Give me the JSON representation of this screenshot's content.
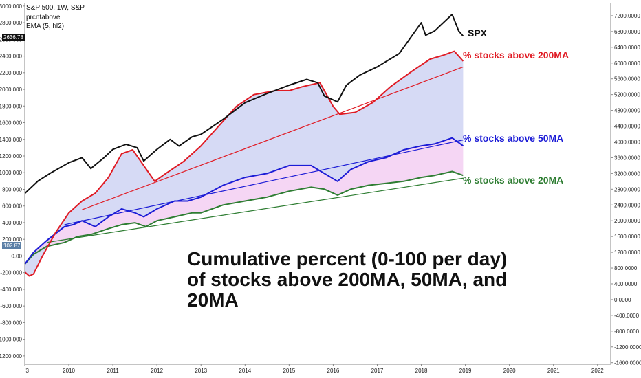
{
  "header": {
    "symbol": "S&P 500, 1W, S&P",
    "indicator": "prcntabove",
    "ema": "EMA (5, hl2)"
  },
  "price_tags": {
    "spx": {
      "text": "2636.78",
      "color": "#111111"
    },
    "indicator": {
      "text": "102.87",
      "color": "#5b7fa6"
    }
  },
  "annotations": {
    "spx": {
      "text": "SPX",
      "color": "#111111"
    },
    "ma200": {
      "text": "% stocks above 200MA",
      "color": "#e01b24"
    },
    "ma50": {
      "text": "% stocks above 50MA",
      "color": "#1c1cd6"
    },
    "ma20": {
      "text": "% stocks above 20MA",
      "color": "#2e7d32"
    }
  },
  "note": {
    "line1": "Cumulative percent (0-100 per day)",
    "line2": "of stocks above 200MA, 50MA, and",
    "line3": "20MA"
  },
  "chart_data": {
    "type": "line",
    "x_labels": [
      "'3",
      "2010",
      "2011",
      "2012",
      "2013",
      "2014",
      "2015",
      "2016",
      "2017",
      "2018",
      "2019",
      "2020",
      "2021",
      "2022"
    ],
    "x_ticks": [
      2009,
      2010,
      2011,
      2012,
      2013,
      2014,
      2015,
      2016,
      2017,
      2018,
      2019,
      2020,
      2021,
      2022
    ],
    "xlim": [
      2009.0,
      2022.3
    ],
    "left_axis": {
      "ticks": [
        3000,
        2800,
        2600,
        2400,
        2200,
        2000,
        1800,
        1600,
        1400,
        1200,
        1000,
        800,
        600,
        400,
        200,
        0,
        -200,
        -400,
        -600,
        -800,
        -1000,
        -1200
      ],
      "tick_labels": [
        "3000.000",
        "2800.000",
        "2600.000",
        "2400.000",
        "2200.000",
        "2000.000",
        "1800.000",
        "1600.000",
        "1400.000",
        "1200.000",
        "1000.000",
        "800.000",
        "600.000",
        "400.000",
        "200.000",
        "0.00",
        "-200.000",
        "-400.000",
        "-600.000",
        "-800.000",
        "-1000.000",
        "-1200.000"
      ],
      "ylim": [
        -1300,
        3040
      ]
    },
    "right_axis": {
      "ticks": [
        7200,
        6800,
        6400,
        6000,
        5600,
        5200,
        4800,
        4400,
        4000,
        3600,
        3200,
        2800,
        2400,
        2000,
        1600,
        1200,
        800,
        400,
        0,
        -400,
        -800,
        -1200,
        -1600
      ],
      "tick_labels": [
        "7200.0000",
        "6800.0000",
        "6400.0000",
        "6000.0000",
        "5600.0000",
        "5200.0000",
        "4800.0000",
        "4400.0000",
        "4000.0000",
        "3600.0000",
        "3200.0000",
        "2800.0000",
        "2400.0000",
        "2000.0000",
        "1600.0000",
        "1200.0000",
        "800.0000",
        "400.0000",
        "0.0000",
        "-400.0000",
        "-800.0000",
        "-1200.0000",
        "-1600.0000"
      ],
      "ylim": [
        -1640,
        7530
      ]
    },
    "series": [
      {
        "name": "SPX",
        "axis": "left",
        "color": "#111111",
        "x": [
          2009.0,
          2009.3,
          2009.6,
          2010.0,
          2010.3,
          2010.5,
          2010.8,
          2011.0,
          2011.3,
          2011.55,
          2011.7,
          2012.0,
          2012.3,
          2012.5,
          2012.8,
          2013.0,
          2013.5,
          2014.0,
          2014.5,
          2015.0,
          2015.4,
          2015.65,
          2015.8,
          2016.1,
          2016.3,
          2016.6,
          2017.0,
          2017.5,
          2018.0,
          2018.1,
          2018.3,
          2018.7,
          2018.85,
          2018.95
        ],
        "y": [
          750,
          900,
          1000,
          1120,
          1180,
          1050,
          1180,
          1280,
          1340,
          1300,
          1140,
          1280,
          1400,
          1320,
          1430,
          1460,
          1640,
          1840,
          1950,
          2050,
          2120,
          2080,
          1920,
          1850,
          2050,
          2170,
          2270,
          2430,
          2800,
          2650,
          2700,
          2900,
          2700,
          2640
        ]
      },
      {
        "name": "% stocks above 200MA",
        "axis": "right",
        "color": "#e01b24",
        "x": [
          2009.0,
          2009.1,
          2009.2,
          2009.4,
          2009.7,
          2010.0,
          2010.3,
          2010.6,
          2010.9,
          2011.2,
          2011.45,
          2011.7,
          2011.95,
          2012.2,
          2012.6,
          2013.0,
          2013.4,
          2013.8,
          2014.2,
          2014.7,
          2015.0,
          2015.3,
          2015.7,
          2016.0,
          2016.15,
          2016.5,
          2016.9,
          2017.3,
          2017.8,
          2018.2,
          2018.5,
          2018.75,
          2018.95
        ],
        "y": [
          700,
          600,
          650,
          1100,
          1700,
          2200,
          2500,
          2700,
          3100,
          3700,
          3800,
          3400,
          3000,
          3200,
          3500,
          3900,
          4400,
          4900,
          5200,
          5300,
          5300,
          5400,
          5500,
          4900,
          4700,
          4750,
          5000,
          5400,
          5800,
          6100,
          6200,
          6300,
          6050
        ]
      },
      {
        "name": "% stocks above 50MA",
        "axis": "right",
        "color": "#1c1cd6",
        "x": [
          2009.0,
          2009.2,
          2009.5,
          2009.9,
          2010.1,
          2010.3,
          2010.6,
          2010.9,
          2011.2,
          2011.5,
          2011.7,
          2012.0,
          2012.4,
          2012.7,
          2013.0,
          2013.5,
          2014.0,
          2014.5,
          2015.0,
          2015.5,
          2015.8,
          2016.1,
          2016.4,
          2016.8,
          2017.2,
          2017.6,
          2018.0,
          2018.3,
          2018.7,
          2018.95
        ],
        "y": [
          900,
          1200,
          1500,
          1850,
          1900,
          2000,
          1850,
          2100,
          2300,
          2200,
          2100,
          2300,
          2500,
          2500,
          2600,
          2900,
          3100,
          3200,
          3400,
          3400,
          3200,
          3000,
          3300,
          3500,
          3600,
          3800,
          3900,
          3950,
          4100,
          3900
        ]
      },
      {
        "name": "% stocks above 20MA",
        "axis": "right",
        "color": "#2e7d32",
        "x": [
          2009.0,
          2009.2,
          2009.5,
          2009.9,
          2010.2,
          2010.5,
          2010.9,
          2011.2,
          2011.5,
          2011.75,
          2012.0,
          2012.4,
          2012.8,
          2013.0,
          2013.5,
          2014.0,
          2014.5,
          2015.0,
          2015.5,
          2015.8,
          2016.1,
          2016.4,
          2016.8,
          2017.2,
          2017.6,
          2018.0,
          2018.3,
          2018.7,
          2018.95
        ],
        "y": [
          900,
          1150,
          1350,
          1450,
          1600,
          1650,
          1800,
          1900,
          1950,
          1850,
          2000,
          2100,
          2200,
          2200,
          2400,
          2500,
          2600,
          2750,
          2850,
          2800,
          2650,
          2800,
          2900,
          2950,
          3000,
          3100,
          3150,
          3250,
          3150
        ]
      }
    ],
    "trendlines": [
      {
        "color": "#e01b24",
        "axis": "right",
        "x": [
          2010.3,
          2018.95
        ],
        "y": [
          2280,
          5900
        ]
      },
      {
        "color": "#1c1cd6",
        "axis": "right",
        "x": [
          2009.9,
          2018.95
        ],
        "y": [
          1900,
          4050
        ]
      },
      {
        "color": "#2e7d32",
        "axis": "right",
        "x": [
          2009.5,
          2018.95
        ],
        "y": [
          1450,
          3080
        ]
      }
    ],
    "fills": [
      {
        "between": [
          "% stocks above 200MA",
          "% stocks above 50MA"
        ],
        "color": "#c8cdf2"
      },
      {
        "between": [
          "% stocks above 50MA",
          "% stocks above 20MA"
        ],
        "color": "#f2c8f0"
      }
    ],
    "grid": false
  }
}
